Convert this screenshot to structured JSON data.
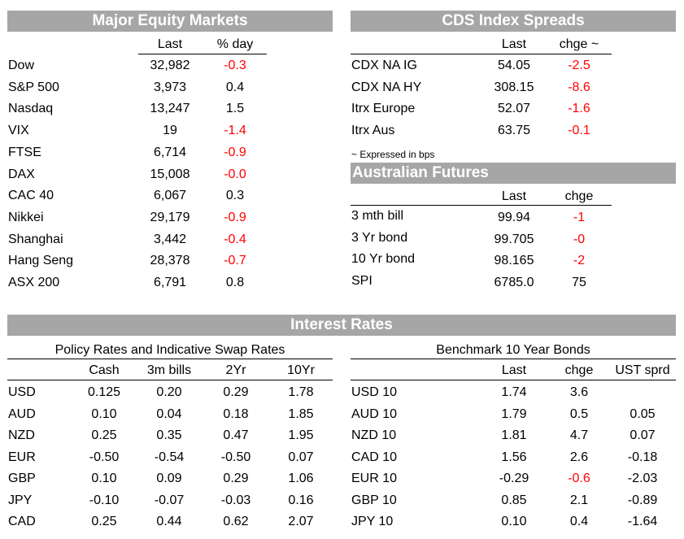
{
  "equity": {
    "title": "Major Equity Markets",
    "col_last": "Last",
    "col_day": "% day",
    "rows": [
      {
        "name": "Dow",
        "last": "32,982",
        "day": "-0.3"
      },
      {
        "name": "S&P 500",
        "last": "3,973",
        "day": "0.4"
      },
      {
        "name": "Nasdaq",
        "last": "13,247",
        "day": "1.5"
      },
      {
        "name": "VIX",
        "last": "19",
        "day": "-1.4"
      },
      {
        "name": "FTSE",
        "last": "6,714",
        "day": "-0.9"
      },
      {
        "name": "DAX",
        "last": "15,008",
        "day": "-0.0"
      },
      {
        "name": "CAC 40",
        "last": "6,067",
        "day": "0.3"
      },
      {
        "name": "Nikkei",
        "last": "29,179",
        "day": "-0.9"
      },
      {
        "name": "Shanghai",
        "last": "3,442",
        "day": "-0.4"
      },
      {
        "name": "Hang Seng",
        "last": "28,378",
        "day": "-0.7"
      },
      {
        "name": "ASX 200",
        "last": "6,791",
        "day": "0.8"
      }
    ]
  },
  "cds": {
    "title": "CDS Index Spreads",
    "col_last": "Last",
    "col_chg": "chge ~",
    "rows": [
      {
        "name": "CDX NA IG",
        "last": "54.05",
        "chg": "-2.5"
      },
      {
        "name": "CDX NA HY",
        "last": "308.15",
        "chg": "-8.6"
      },
      {
        "name": "Itrx Europe",
        "last": "52.07",
        "chg": "-1.6"
      },
      {
        "name": "Itrx Aus",
        "last": "63.75",
        "chg": "-0.1"
      }
    ],
    "note": "~ Expressed in bps"
  },
  "futures": {
    "title": "Australian Futures",
    "col_last": "Last",
    "col_chg": "chge",
    "rows": [
      {
        "name": "3 mth bill",
        "last": "99.94",
        "chg": "-1"
      },
      {
        "name": "3 Yr bond",
        "last": "99.705",
        "chg": "-0"
      },
      {
        "name": "10 Yr bond",
        "last": "98.165",
        "chg": "-2"
      },
      {
        "name": "SPI",
        "last": "6785.0",
        "chg": "75"
      }
    ]
  },
  "rates": {
    "title": "Interest Rates",
    "policy": {
      "subtitle": "Policy Rates and Indicative Swap Rates",
      "cols": [
        "Cash",
        "3m bills",
        "2Yr",
        "10Yr"
      ],
      "rows": [
        {
          "name": "USD",
          "vals": [
            "0.125",
            "0.20",
            "0.29",
            "1.78"
          ]
        },
        {
          "name": "AUD",
          "vals": [
            "0.10",
            "0.04",
            "0.18",
            "1.85"
          ]
        },
        {
          "name": "NZD",
          "vals": [
            "0.25",
            "0.35",
            "0.47",
            "1.95"
          ]
        },
        {
          "name": "EUR",
          "vals": [
            "-0.50",
            "-0.54",
            "-0.50",
            "0.07"
          ]
        },
        {
          "name": "GBP",
          "vals": [
            "0.10",
            "0.09",
            "0.29",
            "1.06"
          ]
        },
        {
          "name": "JPY",
          "vals": [
            "-0.10",
            "-0.07",
            "-0.03",
            "0.16"
          ]
        },
        {
          "name": "CAD",
          "vals": [
            "0.25",
            "0.44",
            "0.62",
            "2.07"
          ]
        }
      ]
    },
    "bonds": {
      "subtitle": "Benchmark 10 Year Bonds",
      "cols": [
        "Last",
        "chge",
        "UST sprd"
      ],
      "rows": [
        {
          "name": "USD 10",
          "last": "1.74",
          "chg": "3.6",
          "sprd": ""
        },
        {
          "name": "AUD 10",
          "last": "1.79",
          "chg": "0.5",
          "sprd": "0.05"
        },
        {
          "name": "NZD 10",
          "last": "1.81",
          "chg": "4.7",
          "sprd": "0.07"
        },
        {
          "name": "CAD 10",
          "last": "1.56",
          "chg": "2.6",
          "sprd": "-0.18"
        },
        {
          "name": "EUR 10",
          "last": "-0.29",
          "chg": "-0.6",
          "sprd": "-2.03"
        },
        {
          "name": "GBP 10",
          "last": "0.85",
          "chg": "2.1",
          "sprd": "-0.89"
        },
        {
          "name": "JPY 10",
          "last": "0.10",
          "chg": "0.4",
          "sprd": "-1.64"
        }
      ]
    }
  },
  "colors": {
    "header_bg": "#a6a6a6",
    "header_text": "#ffffff",
    "negative": "#ff0000"
  }
}
